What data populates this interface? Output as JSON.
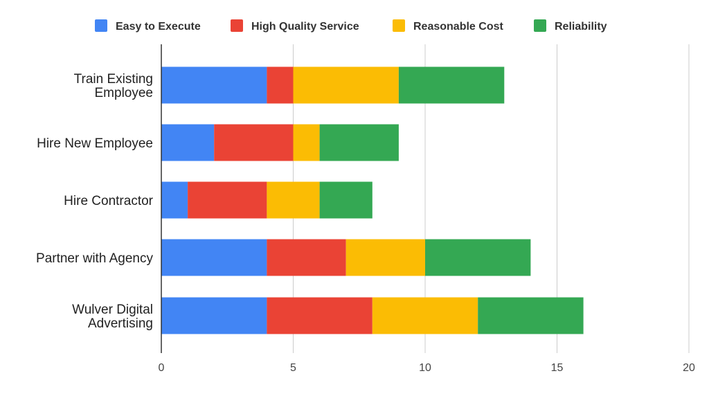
{
  "chart_data": {
    "type": "bar",
    "orientation": "horizontal",
    "stacked": true,
    "categories": [
      [
        "Train Existing",
        "Employee"
      ],
      [
        "Hire New Employee"
      ],
      [
        "Hire Contractor"
      ],
      [
        "Partner with Agency"
      ],
      [
        "Wulver Digital",
        "Advertising"
      ]
    ],
    "series": [
      {
        "name": "Easy to Execute",
        "color": "#4285F4",
        "values": [
          4,
          2,
          1,
          4,
          4
        ]
      },
      {
        "name": "High Quality Service",
        "color": "#EA4335",
        "values": [
          1,
          3,
          3,
          3,
          4
        ]
      },
      {
        "name": "Reasonable Cost",
        "color": "#FBBC04",
        "values": [
          4,
          1,
          2,
          3,
          4
        ]
      },
      {
        "name": "Reliability",
        "color": "#34A853",
        "values": [
          4,
          3,
          2,
          4,
          4
        ]
      }
    ],
    "xlim": [
      0,
      20
    ],
    "xticks": [
      0,
      5,
      10,
      15,
      20
    ],
    "grid": true,
    "legend_position": "top"
  }
}
